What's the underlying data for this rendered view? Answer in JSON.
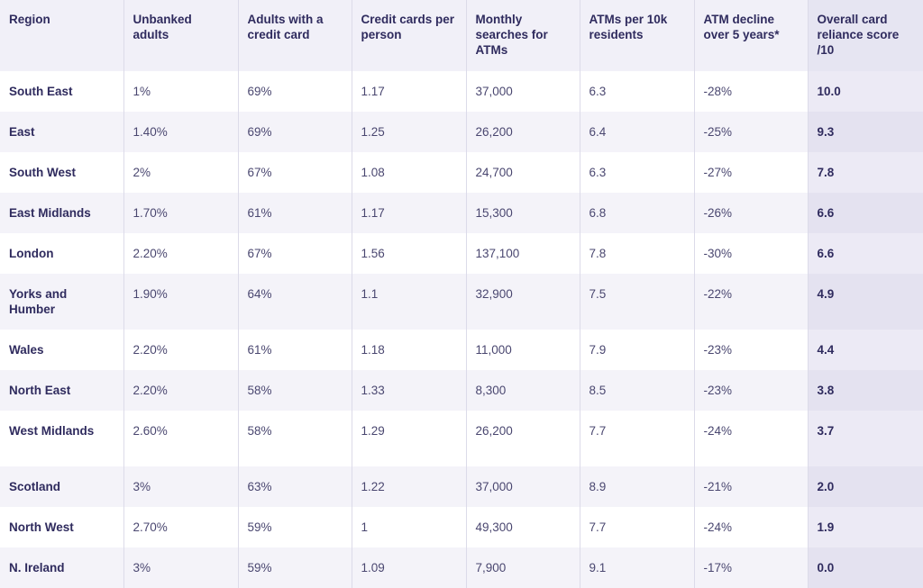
{
  "table": {
    "headers": [
      "Region",
      "Unbanked adults",
      "Adults with a credit card",
      "Credit cards per person",
      "Monthly searches for ATMs",
      "ATMs per 10k residents",
      "ATM decline over 5 years*",
      "Overall card reliance score /10"
    ],
    "rows": [
      {
        "region": "South East",
        "unbanked": "1%",
        "credit_card": "69%",
        "cards_per_person": "1.17",
        "searches": "37,000",
        "atms": "6.3",
        "decline": "-28%",
        "score": "10.0"
      },
      {
        "region": "East",
        "unbanked": "1.40%",
        "credit_card": "69%",
        "cards_per_person": "1.25",
        "searches": "26,200",
        "atms": "6.4",
        "decline": "-25%",
        "score": "9.3"
      },
      {
        "region": "South West",
        "unbanked": "2%",
        "credit_card": "67%",
        "cards_per_person": "1.08",
        "searches": "24,700",
        "atms": "6.3",
        "decline": "-27%",
        "score": "7.8"
      },
      {
        "region": "East Midlands",
        "unbanked": "1.70%",
        "credit_card": "61%",
        "cards_per_person": "1.17",
        "searches": "15,300",
        "atms": "6.8",
        "decline": "-26%",
        "score": "6.6"
      },
      {
        "region": "London",
        "unbanked": "2.20%",
        "credit_card": "67%",
        "cards_per_person": "1.56",
        "searches": "137,100",
        "atms": "7.8",
        "decline": "-30%",
        "score": "6.6"
      },
      {
        "region": "Yorks and Humber",
        "unbanked": "1.90%",
        "credit_card": "64%",
        "cards_per_person": "1.1",
        "searches": "32,900",
        "atms": "7.5",
        "decline": "-22%",
        "score": "4.9"
      },
      {
        "region": "Wales",
        "unbanked": "2.20%",
        "credit_card": "61%",
        "cards_per_person": "1.18",
        "searches": "11,000",
        "atms": "7.9",
        "decline": "-23%",
        "score": "4.4"
      },
      {
        "region": "North East",
        "unbanked": "2.20%",
        "credit_card": "58%",
        "cards_per_person": "1.33",
        "searches": "8,300",
        "atms": "8.5",
        "decline": "-23%",
        "score": "3.8"
      },
      {
        "region": "West Midlands",
        "unbanked": "2.60%",
        "credit_card": "58%",
        "cards_per_person": "1.29",
        "searches": "26,200",
        "atms": "7.7",
        "decline": "-24%",
        "score": "3.7"
      },
      {
        "region": "Scotland",
        "unbanked": "3%",
        "credit_card": "63%",
        "cards_per_person": "1.22",
        "searches": "37,000",
        "atms": "8.9",
        "decline": "-21%",
        "score": "2.0"
      },
      {
        "region": "North West",
        "unbanked": "2.70%",
        "credit_card": "59%",
        "cards_per_person": "1",
        "searches": "49,300",
        "atms": "7.7",
        "decline": "-24%",
        "score": "1.9"
      },
      {
        "region": "N. Ireland",
        "unbanked": "3%",
        "credit_card": "59%",
        "cards_per_person": "1.09",
        "searches": "7,900",
        "atms": "9.1",
        "decline": "-17%",
        "score": "0.0"
      }
    ]
  },
  "colors": {
    "header_bg": "#f1f0f8",
    "stripe_bg": "#f4f3f9",
    "score_col_bg": "#e6e5f2",
    "text": "#2f2b5e"
  }
}
